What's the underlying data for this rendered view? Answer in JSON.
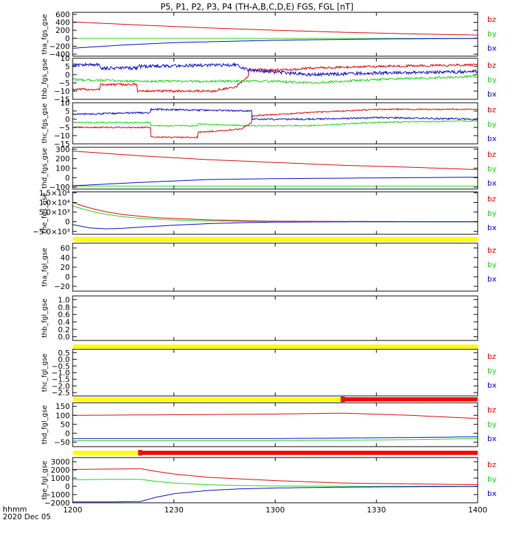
{
  "title": "P5, P1, P2, P3, P4 (TH-A,B,C,D,E) FGS, FGL [nT]",
  "footer": {
    "time_label": "hhmm",
    "date_label": "2020 Dec 05"
  },
  "colors": {
    "bz": "#d40000",
    "by": "#16d316",
    "bx": "#0000c8",
    "flag_yellow": "#ffff00",
    "flag_red": "#ff0000",
    "frame": "#000000"
  },
  "chart_data": {
    "type": "line",
    "x_range": [
      1200,
      1400
    ],
    "x_units": "hhmm (minutes since 12:00 for positions)",
    "x_ticks": [
      {
        "min": 0,
        "label": "1200"
      },
      {
        "min": 30,
        "label": "1230"
      },
      {
        "min": 60,
        "label": "1300"
      },
      {
        "min": 90,
        "label": "1330"
      },
      {
        "min": 120,
        "label": "1400"
      }
    ],
    "panels": [
      {
        "ylabel": "tha_fgs_gse",
        "ylim": [
          -450,
          650
        ],
        "ticks": [
          600,
          400,
          200,
          0,
          -200,
          -400
        ],
        "tick_labels": [
          "600",
          "400",
          "200",
          "0",
          "−200",
          "−400"
        ],
        "legend": [
          "bz",
          "by",
          "bx"
        ],
        "series": [
          {
            "name": "bz",
            "x": [
              0,
              20,
              40,
              60,
              80,
              100,
              120
            ],
            "y": [
              410,
              330,
              260,
              200,
              150,
              110,
              80
            ],
            "noise": 0
          },
          {
            "name": "by",
            "x": [
              0,
              60,
              120
            ],
            "y": [
              -5,
              -5,
              -5
            ],
            "noise": 0
          },
          {
            "name": "bx",
            "x": [
              0,
              15,
              30,
              60,
              90,
              120
            ],
            "y": [
              -250,
              -170,
              -110,
              -50,
              -20,
              -5
            ],
            "noise": 0
          }
        ]
      },
      {
        "ylabel": "thb_fgs_gse",
        "ylim": [
          -15,
          10
        ],
        "ticks": [
          10,
          5,
          0,
          -5,
          -10,
          -15
        ],
        "tick_labels": [
          "10",
          "5",
          "0",
          "−5",
          "−10",
          "−15"
        ],
        "legend": [
          "bz",
          "by",
          "bx"
        ],
        "series": [
          {
            "name": "bz",
            "x": [
              0,
              8,
              8.1,
              19,
              19.1,
              43,
              43.1,
              48,
              52,
              52.1,
              65,
              70,
              90,
              120
            ],
            "y": [
              -9,
              -9,
              -6,
              -6,
              -10,
              -10,
              -9,
              -8,
              -1,
              3,
              3,
              4,
              5,
              6
            ],
            "noise": 0.7
          },
          {
            "name": "by",
            "x": [
              0,
              20,
              40,
              52,
              60,
              70,
              90,
              120
            ],
            "y": [
              -3,
              -4,
              -4,
              -4,
              -4,
              -5,
              -3,
              -1
            ],
            "noise": 0.7
          },
          {
            "name": "bx",
            "x": [
              0,
              8,
              8.1,
              19,
              19.1,
              48,
              52,
              70,
              90,
              120
            ],
            "y": [
              6,
              6,
              4,
              4,
              5,
              6,
              3,
              0,
              1,
              2
            ],
            "noise": 1.0
          }
        ]
      },
      {
        "ylabel": "thc_fgs_gse",
        "ylim": [
          -15,
          10
        ],
        "ticks": [
          10,
          5,
          0,
          -5,
          -10,
          -15
        ],
        "tick_labels": [
          "10",
          "5",
          "0",
          "−5",
          "−10",
          "−15"
        ],
        "legend": [
          "bz",
          "by",
          "bx"
        ],
        "series": [
          {
            "name": "bz",
            "x": [
              0,
              23,
              23.1,
              37,
              37.1,
              50,
              53,
              53.1,
              70,
              90,
              120
            ],
            "y": [
              -5,
              -5,
              -11,
              -11,
              -8,
              -6,
              -2,
              2,
              4,
              6,
              6
            ],
            "noise": 0.4
          },
          {
            "name": "by",
            "x": [
              0,
              23,
              23.1,
              37,
              37.1,
              53,
              70,
              90,
              120
            ],
            "y": [
              -2,
              -2,
              -4,
              -4,
              -3,
              -4,
              -4,
              -2,
              -1
            ],
            "noise": 0.4
          },
          {
            "name": "bx",
            "x": [
              0,
              23,
              23.1,
              53,
              53.1,
              70,
              90,
              120
            ],
            "y": [
              3,
              4,
              6,
              5,
              0,
              0,
              1,
              0
            ],
            "noise": 0.5
          }
        ]
      },
      {
        "ylabel": "thd_fgs_gse",
        "ylim": [
          -120,
          320
        ],
        "ticks": [
          300,
          200,
          100,
          0,
          -100
        ],
        "tick_labels": [
          "300",
          "200",
          "100",
          "0",
          "−100"
        ],
        "legend": [
          "bz",
          "by",
          "bx"
        ],
        "series": [
          {
            "name": "bz",
            "x": [
              0,
              20,
              40,
              60,
              80,
              100,
              120
            ],
            "y": [
              280,
              230,
              190,
              160,
              130,
              110,
              85
            ],
            "noise": 0
          },
          {
            "name": "by",
            "x": [
              0,
              60,
              120
            ],
            "y": [
              -90,
              -90,
              -90
            ],
            "noise": 0
          },
          {
            "name": "bx",
            "x": [
              0,
              20,
              40,
              60,
              80,
              100,
              120
            ],
            "y": [
              -85,
              -50,
              -20,
              -10,
              -5,
              0,
              5
            ],
            "noise": 0
          }
        ]
      },
      {
        "ylabel": "the_fgs_gse",
        "ylim": [
          -6500,
          15500
        ],
        "ticks": [
          15000,
          10000,
          5000,
          0,
          -5000
        ],
        "tick_labels": [
          "1.5×10⁴",
          "1.0×10⁴",
          "5.0×10³",
          "0",
          "−5.0×10³"
        ],
        "legend": [
          "bz",
          "by",
          "bx"
        ],
        "series": [
          {
            "name": "bz",
            "x": [
              0,
              3,
              6,
              10,
              15,
              20,
              25,
              30,
              40,
              50,
              60,
              90,
              120
            ],
            "y": [
              10000,
              8200,
              6700,
              5100,
              3700,
              2800,
              2100,
              1700,
              1000,
              600,
              300,
              100,
              0
            ],
            "noise": 0
          },
          {
            "name": "by",
            "x": [
              0,
              3,
              6,
              10,
              15,
              20,
              25,
              30,
              40,
              50,
              60,
              90,
              120
            ],
            "y": [
              8200,
              6600,
              5200,
              3800,
              2600,
              1800,
              1300,
              900,
              400,
              200,
              100,
              0,
              0
            ],
            "noise": 0
          },
          {
            "name": "bx",
            "x": [
              0,
              5,
              10,
              15,
              20,
              30,
              40,
              50,
              60,
              90,
              120
            ],
            "y": [
              -1500,
              -3200,
              -3700,
              -3400,
              -2800,
              -1800,
              -1000,
              -500,
              -200,
              0,
              0
            ],
            "noise": 0
          }
        ]
      },
      {
        "ylabel": "tha_fgl_gse",
        "ylim": [
          -30,
          70
        ],
        "ticks": [
          60,
          40,
          20,
          0,
          -20
        ],
        "tick_labels": [
          "60",
          "40",
          "20",
          "0",
          "−20"
        ],
        "legend": [
          "bz",
          "by",
          "bx"
        ],
        "series": []
      },
      {
        "ylabel": "thb_fgl_gse",
        "ylim": [
          -0.1,
          1.1
        ],
        "ticks": [
          1.0,
          0.8,
          0.6,
          0.4,
          0.2,
          0.0
        ],
        "tick_labels": [
          "1.0",
          "0.8",
          "0.6",
          "0.4",
          "0.2",
          "0.0"
        ],
        "legend": [],
        "series": []
      },
      {
        "ylabel": "thc_fgl_gse",
        "ylim": [
          -2.75,
          0.75
        ],
        "ticks": [
          0.5,
          0.0,
          -0.5,
          -1.0,
          -1.5,
          -2.0,
          -2.5
        ],
        "tick_labels": [
          "0.5",
          "0.0",
          "−0.5",
          "−1.0",
          "−1.5",
          "−2.0",
          "−2.5"
        ],
        "legend": [
          "bz",
          "by",
          "bx"
        ],
        "series": []
      },
      {
        "ylabel": "thd_fgl_gse",
        "ylim": [
          -75,
          170
        ],
        "ticks": [
          150,
          100,
          50,
          0,
          -50
        ],
        "tick_labels": [
          "150",
          "100",
          "50",
          "0",
          "−50"
        ],
        "legend": [
          "bz",
          "by",
          "bx"
        ],
        "series": [
          {
            "name": "bz",
            "x": [
              0,
              30,
              60,
              80,
              100,
              120
            ],
            "y": [
              100,
              103,
              107,
              112,
              100,
              82
            ],
            "noise": 0
          },
          {
            "name": "by",
            "x": [
              0,
              60,
              100,
              120
            ],
            "y": [
              -42,
              -42,
              -36,
              -30
            ],
            "noise": 0
          },
          {
            "name": "bx",
            "x": [
              0,
              60,
              100,
              120
            ],
            "y": [
              -30,
              -30,
              -24,
              -20
            ],
            "noise": 0
          }
        ]
      },
      {
        "ylabel": "the_fgl_gse",
        "ylim": [
          -2000,
          3500
        ],
        "ticks": [
          3000,
          2000,
          1000,
          0,
          -1000,
          -2000
        ],
        "tick_labels": [
          "3000",
          "2000",
          "1000",
          "0",
          "−1000",
          "−2000"
        ],
        "legend": [
          "bz",
          "by",
          "bx"
        ],
        "series": [
          {
            "name": "bz",
            "x": [
              0,
              10,
              20,
              25,
              30,
              40,
              50,
              60,
              80,
              100,
              120
            ],
            "y": [
              2050,
              2100,
              2150,
              1800,
              1500,
              1100,
              900,
              700,
              400,
              300,
              200
            ],
            "noise": 0
          },
          {
            "name": "by",
            "x": [
              0,
              10,
              20,
              25,
              30,
              40,
              50,
              60,
              80,
              100,
              120
            ],
            "y": [
              800,
              850,
              850,
              600,
              400,
              200,
              100,
              50,
              0,
              0,
              0
            ],
            "noise": 0
          },
          {
            "name": "bx",
            "x": [
              0,
              10,
              20,
              25,
              30,
              40,
              50,
              60,
              80,
              100,
              120
            ],
            "y": [
              -1900,
              -1900,
              -1850,
              -1300,
              -900,
              -500,
              -300,
              -200,
              -100,
              -50,
              -20
            ],
            "noise": 0
          }
        ]
      }
    ],
    "flag_bars": [
      {
        "after_panel": 4,
        "segments": [
          {
            "from": 0,
            "to": 120,
            "color": "yellow"
          }
        ]
      },
      {
        "after_panel": 6,
        "segments": [
          {
            "from": 0,
            "to": 120,
            "color": "yellow"
          }
        ]
      },
      {
        "after_panel": 7,
        "segments": [
          {
            "from": 0,
            "to": 80,
            "color": "yellow"
          },
          {
            "from": 80,
            "to": 120,
            "color": "red"
          }
        ]
      },
      {
        "after_panel": 8,
        "segments": [
          {
            "from": 0,
            "to": 20,
            "color": "yellow"
          },
          {
            "from": 20,
            "to": 120,
            "color": "red"
          }
        ]
      }
    ]
  }
}
